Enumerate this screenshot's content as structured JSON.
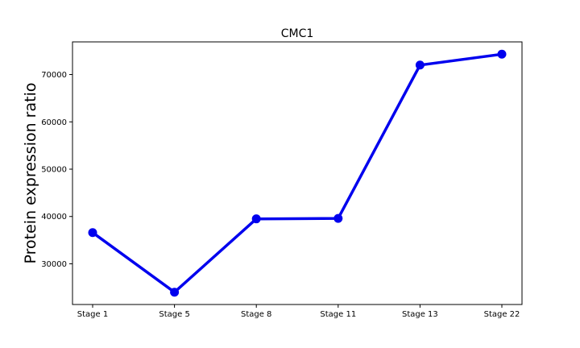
{
  "chart_data": {
    "type": "line",
    "title": "CMC1",
    "xlabel": "",
    "ylabel": "Protein expression ratio",
    "categories": [
      "Stage 1",
      "Stage 5",
      "Stage 8",
      "Stage 11",
      "Stage 13",
      "Stage 22"
    ],
    "series": [
      {
        "values": [
          36600,
          24000,
          39500,
          39600,
          72000,
          74300
        ],
        "color": "#0000ee"
      }
    ],
    "yticks": [
      30000,
      40000,
      50000,
      60000,
      70000
    ],
    "ytick_labels": [
      "30000",
      "40000",
      "50000",
      "60000",
      "70000"
    ],
    "ylim": [
      21400,
      76900
    ],
    "grid": false,
    "legend": "none"
  }
}
